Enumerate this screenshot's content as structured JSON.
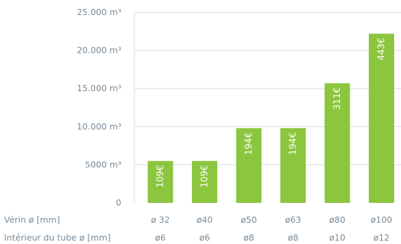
{
  "chart_data": {
    "type": "bar",
    "categories": [
      "ø 32",
      "ø40",
      "ø50",
      "ø63",
      "ø80",
      "ø100"
    ],
    "secondary_categories": [
      "ø6",
      "ø6",
      "ø8",
      "ø8",
      "ø10",
      "ø12"
    ],
    "row_labels": {
      "primary": "Vérin ø [mm]",
      "secondary": "Intérieur du tube ø [mm]"
    },
    "values": [
      5500,
      5500,
      9800,
      9800,
      15700,
      22200
    ],
    "bar_labels": [
      "109€",
      "109€",
      "194€",
      "194€",
      "311€",
      "443€"
    ],
    "y_ticks": [
      "0",
      "5000 m³",
      "10.000 m³",
      "15.000 m³",
      "20.000 m³",
      "25.000 m³"
    ],
    "y_tick_values": [
      0,
      5000,
      10000,
      15000,
      20000,
      25000
    ],
    "ylim": [
      0,
      25000
    ],
    "bar_color": "#8cc63f",
    "grid_color": "#d6dbe0",
    "title": "",
    "xlabel": "",
    "ylabel": ""
  }
}
